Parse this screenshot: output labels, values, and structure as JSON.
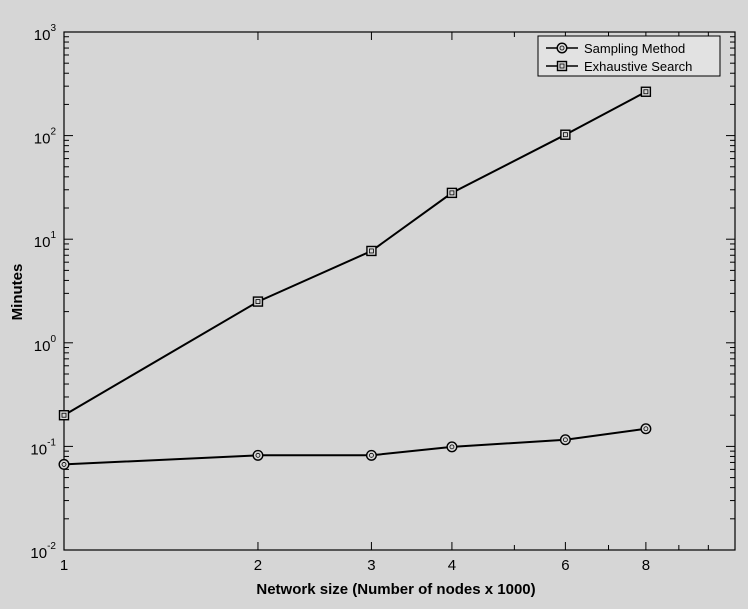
{
  "chart_data": {
    "type": "line",
    "xlabel": "Network size (Number of nodes x 1000)",
    "ylabel": "Minutes",
    "x_scale": "log",
    "y_scale": "log",
    "xlim": [
      1,
      11
    ],
    "ylim": [
      0.01,
      1000
    ],
    "x_ticks": [
      {
        "value": 1,
        "label": "1"
      },
      {
        "value": 2,
        "label": "2"
      },
      {
        "value": 3,
        "label": "3"
      },
      {
        "value": 4,
        "label": "4"
      },
      {
        "value": 6,
        "label": "6"
      },
      {
        "value": 8,
        "label": "8"
      }
    ],
    "y_ticks": [
      {
        "value": 0.01,
        "base": "10",
        "exp": "-2"
      },
      {
        "value": 0.1,
        "base": "10",
        "exp": "-1"
      },
      {
        "value": 1,
        "base": "10",
        "exp": "0"
      },
      {
        "value": 10,
        "base": "10",
        "exp": "1"
      },
      {
        "value": 100,
        "base": "10",
        "exp": "2"
      },
      {
        "value": 1000,
        "base": "10",
        "exp": "3"
      }
    ],
    "grid": false,
    "legend_position": "top-right",
    "x": [
      1,
      2,
      3,
      4,
      6,
      8
    ],
    "series": [
      {
        "name": "Sampling Method",
        "marker": "circle",
        "values": [
          0.067,
          0.082,
          0.082,
          0.099,
          0.116,
          0.148
        ]
      },
      {
        "name": "Exhaustive Search",
        "marker": "square",
        "values": [
          0.2,
          2.5,
          7.7,
          28,
          102,
          265
        ]
      }
    ]
  }
}
